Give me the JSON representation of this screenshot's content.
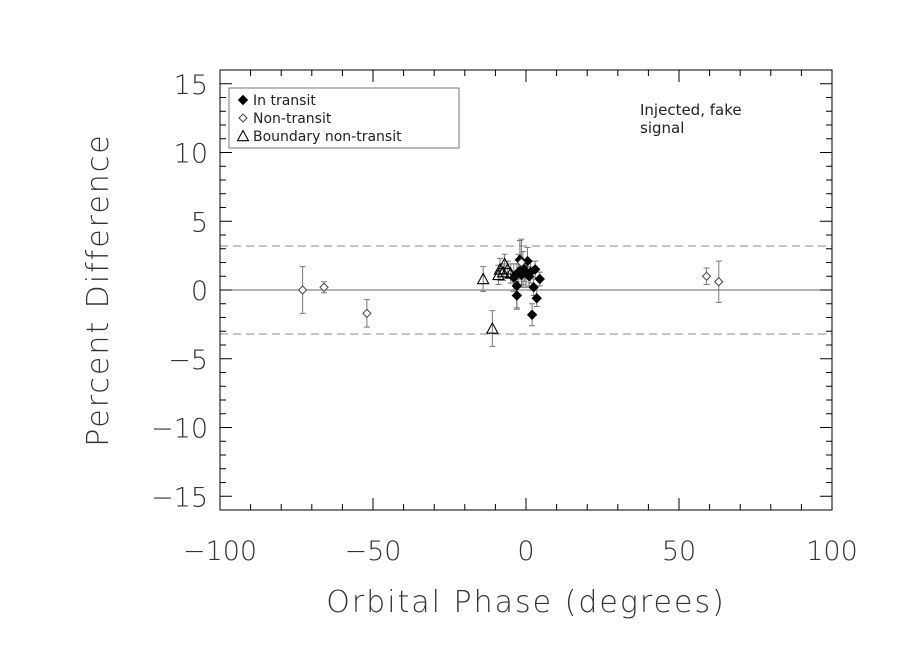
{
  "chart_data": {
    "type": "scatter",
    "title": "",
    "xlabel": "Orbital Phase (degrees)",
    "ylabel": "Percent Difference",
    "xlim": [
      -100,
      100
    ],
    "ylim": [
      -16,
      16
    ],
    "xticks": [
      -100,
      -50,
      0,
      50,
      100
    ],
    "yticks": [
      -15,
      -10,
      -5,
      0,
      5,
      10,
      15
    ],
    "xtick_labels": [
      "−100",
      "−50",
      "0",
      "50",
      "100"
    ],
    "ytick_labels": [
      "−15",
      "−10",
      "−5",
      "0",
      "5",
      "10",
      "15"
    ],
    "grid": false,
    "legend_position": "top-left",
    "reference_lines": [
      {
        "y": 0,
        "style": "solid"
      },
      {
        "y": 3.2,
        "style": "dashed"
      },
      {
        "y": -3.2,
        "style": "dashed"
      }
    ],
    "annotation": [
      "Injected, fake",
      "signal"
    ],
    "series": [
      {
        "name": "In transit",
        "marker": "diamond-filled",
        "points": [
          {
            "x": -4,
            "y": 0.9,
            "err": 1.0
          },
          {
            "x": -3,
            "y": 0.3,
            "err": 1.6
          },
          {
            "x": -3,
            "y": -0.4,
            "err": 1.0
          },
          {
            "x": -2.5,
            "y": 1.3,
            "err": 1.3
          },
          {
            "x": -2,
            "y": 2.2,
            "err": 1.4
          },
          {
            "x": -1.5,
            "y": 1.1,
            "err": 0.9
          },
          {
            "x": -1,
            "y": 1.6,
            "err": 1.2
          },
          {
            "x": -0.5,
            "y": 1.4,
            "err": 0.8
          },
          {
            "x": 0,
            "y": 1.2,
            "err": 1.0
          },
          {
            "x": 0.5,
            "y": 2.1,
            "err": 1.0
          },
          {
            "x": 1,
            "y": 1.0,
            "err": 0.7
          },
          {
            "x": 1.5,
            "y": 1.3,
            "err": 0.8
          },
          {
            "x": 2,
            "y": -1.8,
            "err": 0.8
          },
          {
            "x": 2.5,
            "y": 0.2,
            "err": 0.6
          },
          {
            "x": 3,
            "y": 1.5,
            "err": 0.6
          },
          {
            "x": 3.5,
            "y": -0.6,
            "err": 0.6
          },
          {
            "x": 4.5,
            "y": 0.8,
            "err": 0.5
          }
        ]
      },
      {
        "name": "Non-transit",
        "marker": "diamond-open",
        "points": [
          {
            "x": -73,
            "y": 0.0,
            "err": 1.7
          },
          {
            "x": -66,
            "y": 0.2,
            "err": 0.4
          },
          {
            "x": -52,
            "y": -1.7,
            "err": 1.0
          },
          {
            "x": 59,
            "y": 1.0,
            "err": 0.6
          },
          {
            "x": 63,
            "y": 0.6,
            "err": 1.5
          },
          {
            "x": -1.5,
            "y": 2.0,
            "err": 1.7
          }
        ]
      },
      {
        "name": "Boundary non-transit",
        "marker": "triangle-open",
        "points": [
          {
            "x": -14,
            "y": 0.8,
            "err": 0.9
          },
          {
            "x": -11,
            "y": -2.8,
            "err": 1.3
          },
          {
            "x": -9,
            "y": 1.1,
            "err": 0.7
          },
          {
            "x": -8.5,
            "y": 1.5,
            "err": 0.8
          },
          {
            "x": -7.5,
            "y": 1.3,
            "err": 0.6
          },
          {
            "x": -7,
            "y": 1.9,
            "err": 0.7
          },
          {
            "x": -6,
            "y": 1.5,
            "err": 0.6
          },
          {
            "x": -5,
            "y": 1.2,
            "err": 0.7
          }
        ]
      }
    ]
  }
}
